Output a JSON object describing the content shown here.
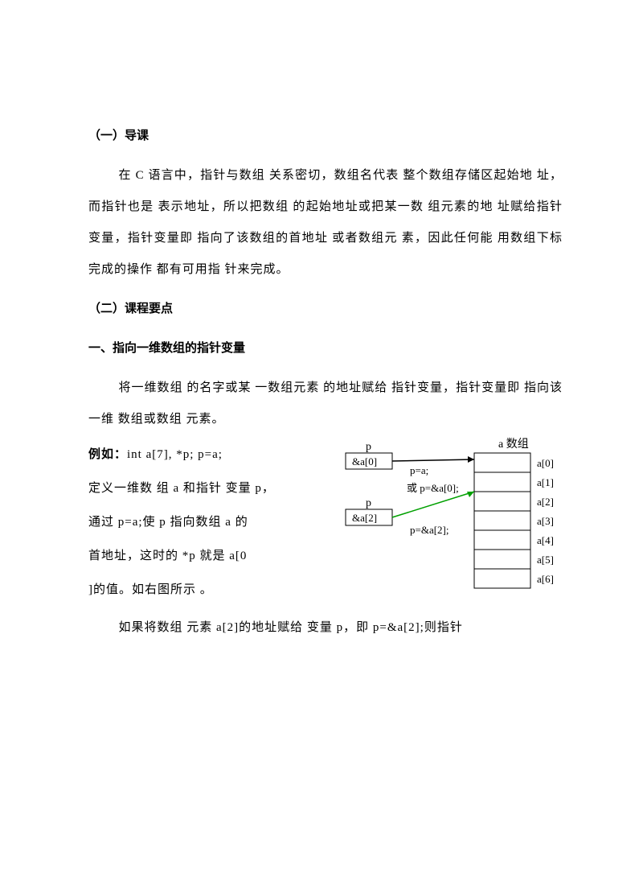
{
  "h1": "（一）导课",
  "p1": "在 C 语言中，指针与数组 关系密切，数组名代表 整个数组存储区起始地 址，而指针也是 表示地址，所以把数组 的起始地址或把某一数 组元素的地 址赋给指针 变量，指针变量即 指向了该数组的首地址 或者数组元 素，因此任何能 用数组下标 完成的操作 都有可用指 针来完成。",
  "h2": "（二）课程要点",
  "h3": "一、指向一维数组的指针变量",
  "p2": "将一维数组 的名字或某 一数组元素 的地址赋给 指针变量，指针变量即 指向该一维 数组或数组 元素。",
  "left": {
    "l1a": "例如：",
    "l1b": "int a[7], *p; p=a;",
    "l2": "定义一维数 组 a 和指针 变量 p，",
    "l3": "通过 p=a;使 p 指向数组 a 的",
    "l4": "首地址，这时的 *p 就是 a[0",
    "l5": "]的值。如右图所示 。"
  },
  "diagram": {
    "p_label": "p",
    "box1": "&a[0]",
    "box2": "&a[2]",
    "eq1": "p=a;",
    "eq2": "或 p=&a[0];",
    "eq3": "p=&a[2];",
    "arr_title": "a 数组",
    "cells": [
      "a[0]",
      "a[1]",
      "a[2]",
      "a[3]",
      "a[4]",
      "a[5]",
      "a[6]"
    ],
    "colors": {
      "arrow1": "#000000",
      "arrow2": "#00a000",
      "box_border": "#000000"
    }
  },
  "p3": "如果将数组 元素 a[2]的地址赋给 变量 p，即 p=&a[2];则指针"
}
